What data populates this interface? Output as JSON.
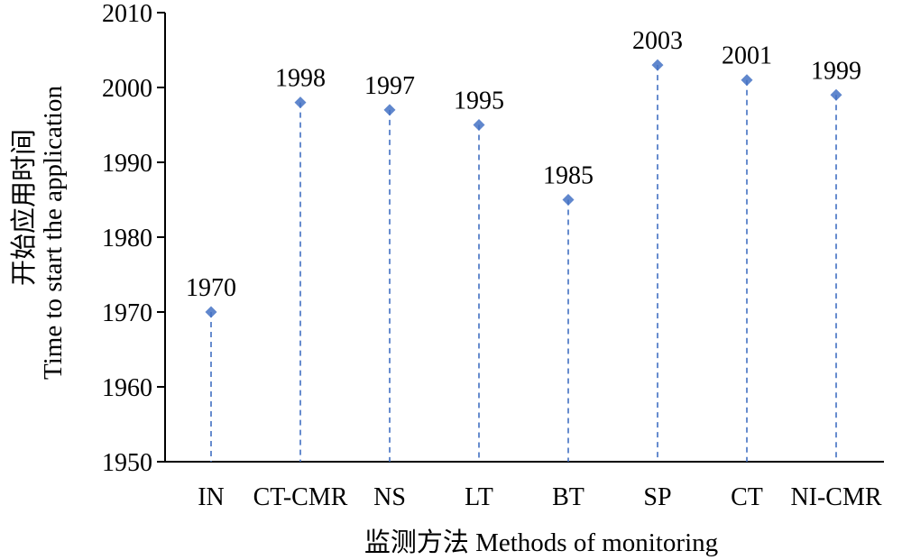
{
  "chart_data": {
    "type": "scatter",
    "categories": [
      "IN",
      "CT-CMR",
      "NS",
      "LT",
      "BT",
      "SP",
      "CT",
      "NI-CMR"
    ],
    "values": [
      1970,
      1998,
      1997,
      1995,
      1985,
      2003,
      2001,
      1999
    ],
    "data_labels": [
      "1970",
      "1998",
      "1997",
      "1995",
      "1985",
      "2003",
      "2001",
      "1999"
    ],
    "xlabel": "监测方法 Methods of monitoring",
    "ylabel_line1": "开始应用时间",
    "ylabel_line2": "Time to start the application",
    "ylim": [
      1950,
      2010
    ],
    "yticks": [
      1950,
      1960,
      1970,
      1980,
      1990,
      2000,
      2010
    ],
    "ytick_labels": [
      "1950",
      "1960",
      "1970",
      "1980",
      "1990",
      "2000",
      "2010"
    ],
    "grid": false,
    "marker": "diamond",
    "drop_lines": "dashed",
    "color": "#4472c4"
  }
}
